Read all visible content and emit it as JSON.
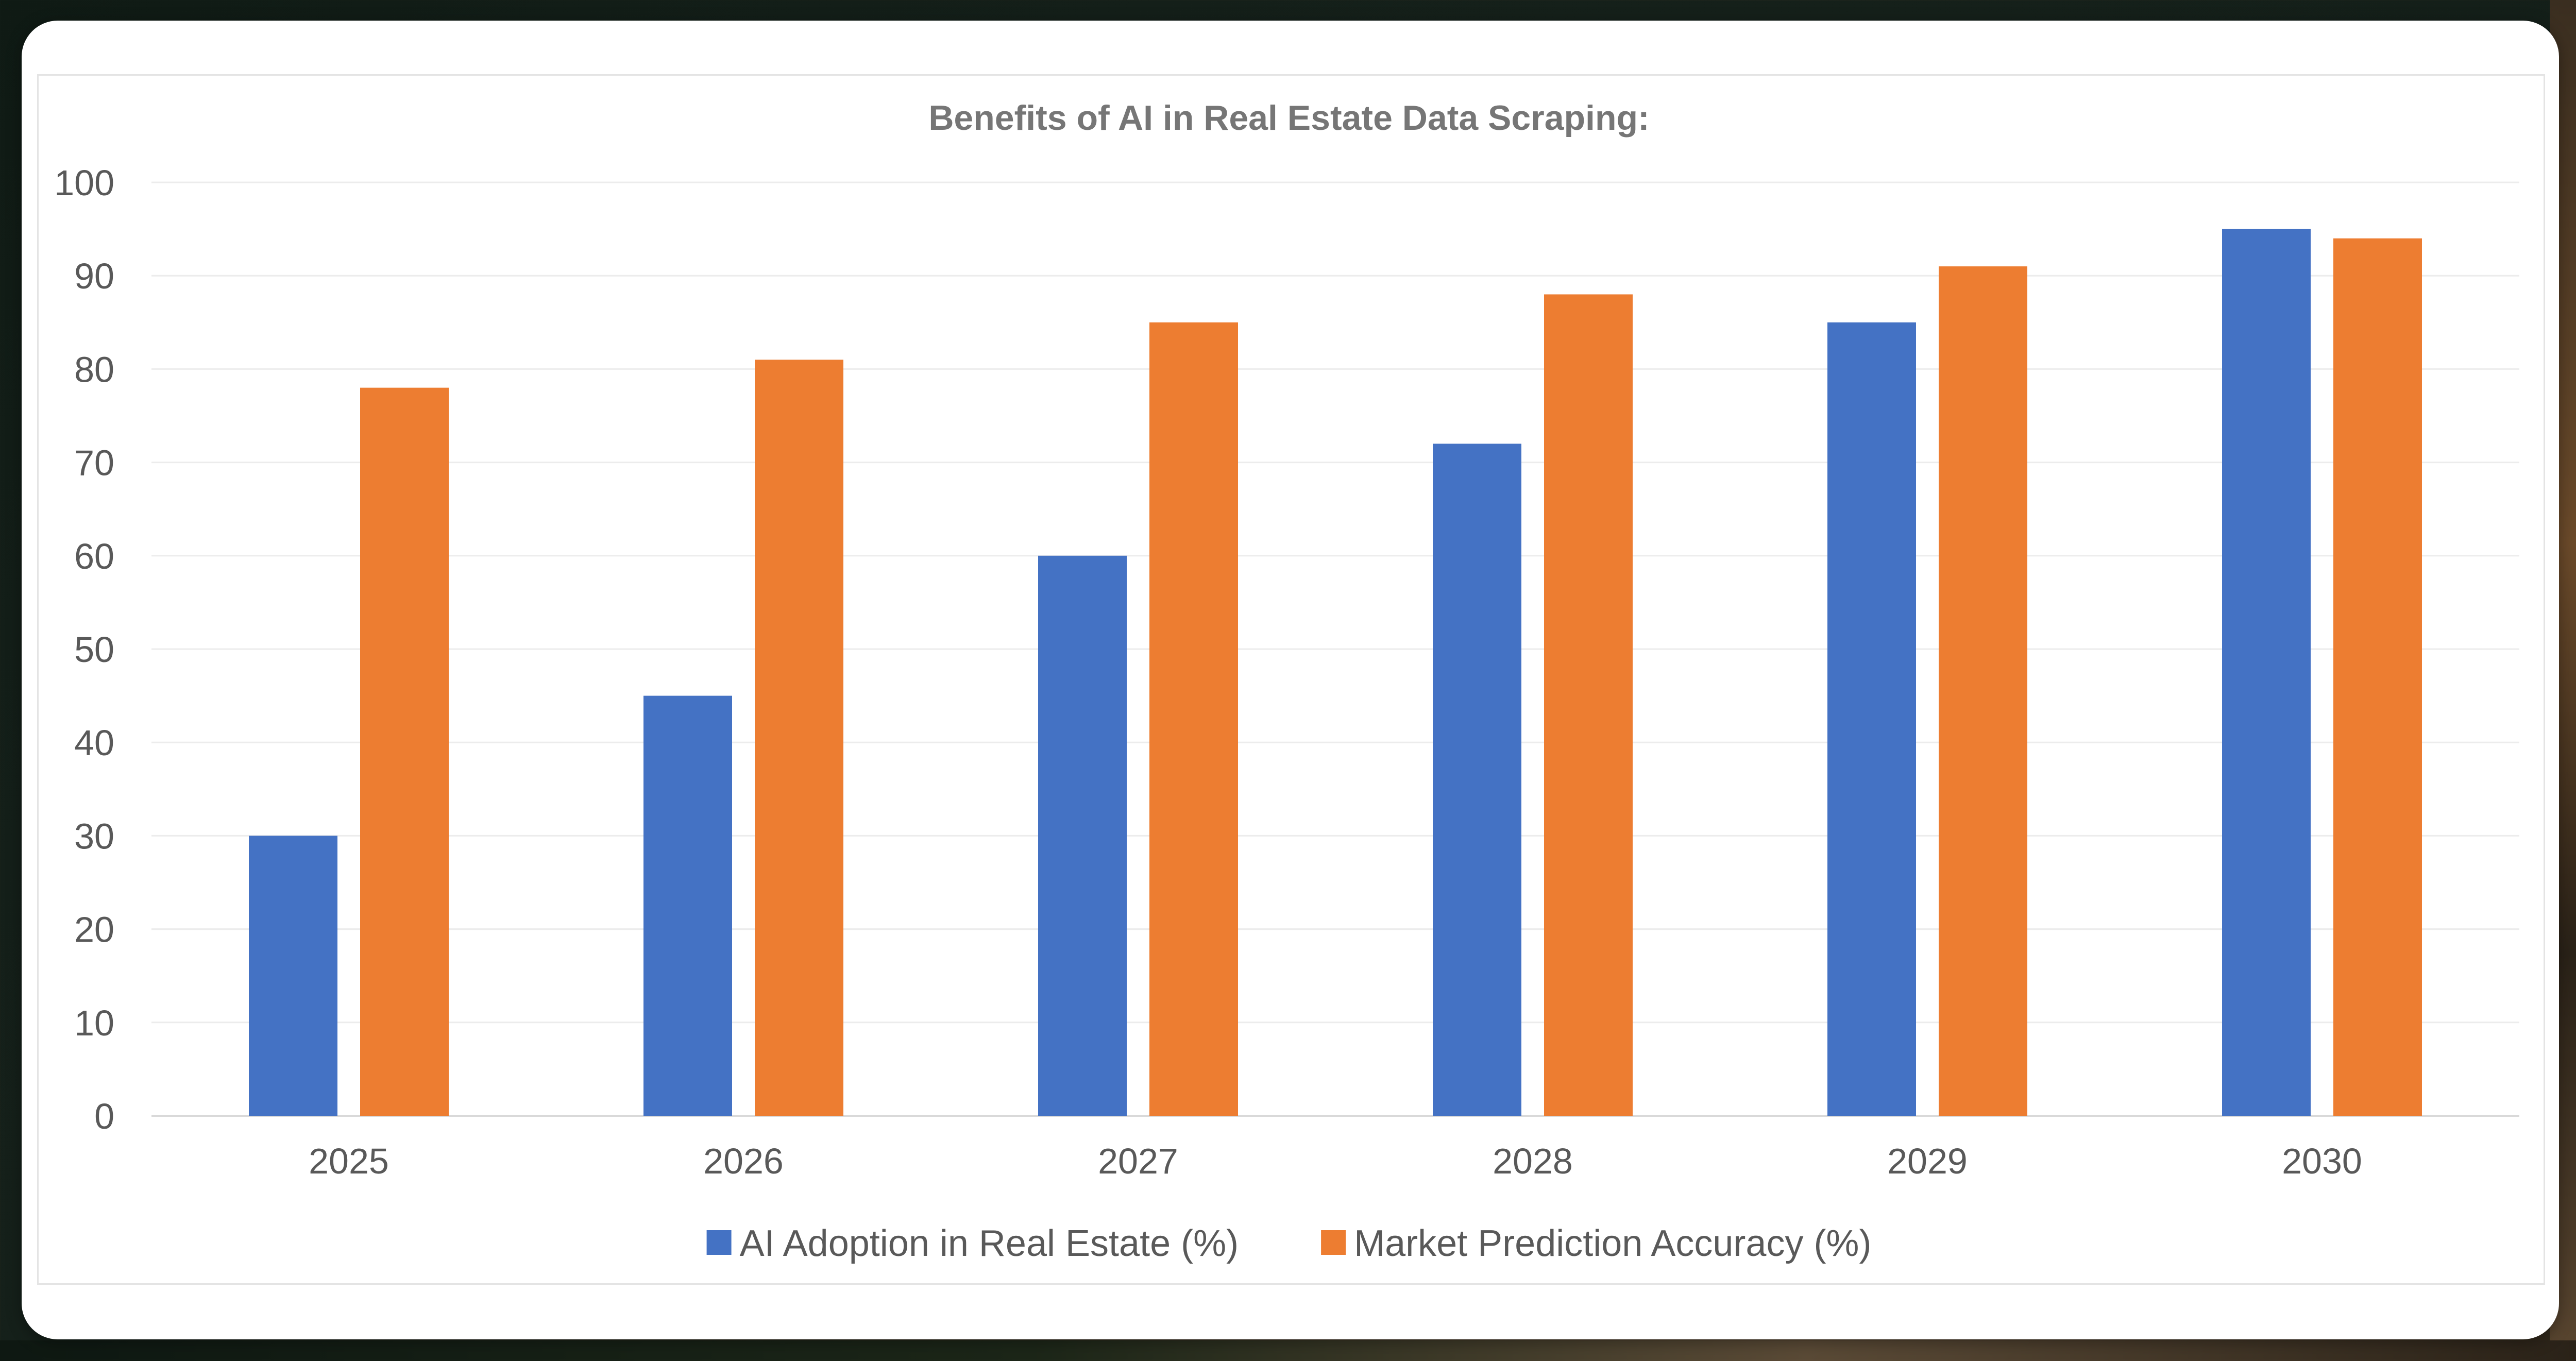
{
  "chart_data": {
    "type": "bar",
    "title": "Benefits of AI in Real Estate Data Scraping:",
    "xlabel": "",
    "ylabel": "",
    "categories": [
      "2025",
      "2026",
      "2027",
      "2028",
      "2029",
      "2030"
    ],
    "series": [
      {
        "name": "AI Adoption in Real Estate (%)",
        "color": "#4472C4",
        "values": [
          30,
          45,
          60,
          72,
          85,
          95
        ]
      },
      {
        "name": "Market Prediction Accuracy (%)",
        "color": "#ED7D31",
        "values": [
          78,
          81,
          85,
          88,
          91,
          94
        ]
      }
    ],
    "ylim": [
      0,
      100
    ],
    "yticks": [
      0,
      10,
      20,
      30,
      40,
      50,
      60,
      70,
      80,
      90,
      100
    ],
    "grid": true,
    "legend": "bottom"
  }
}
